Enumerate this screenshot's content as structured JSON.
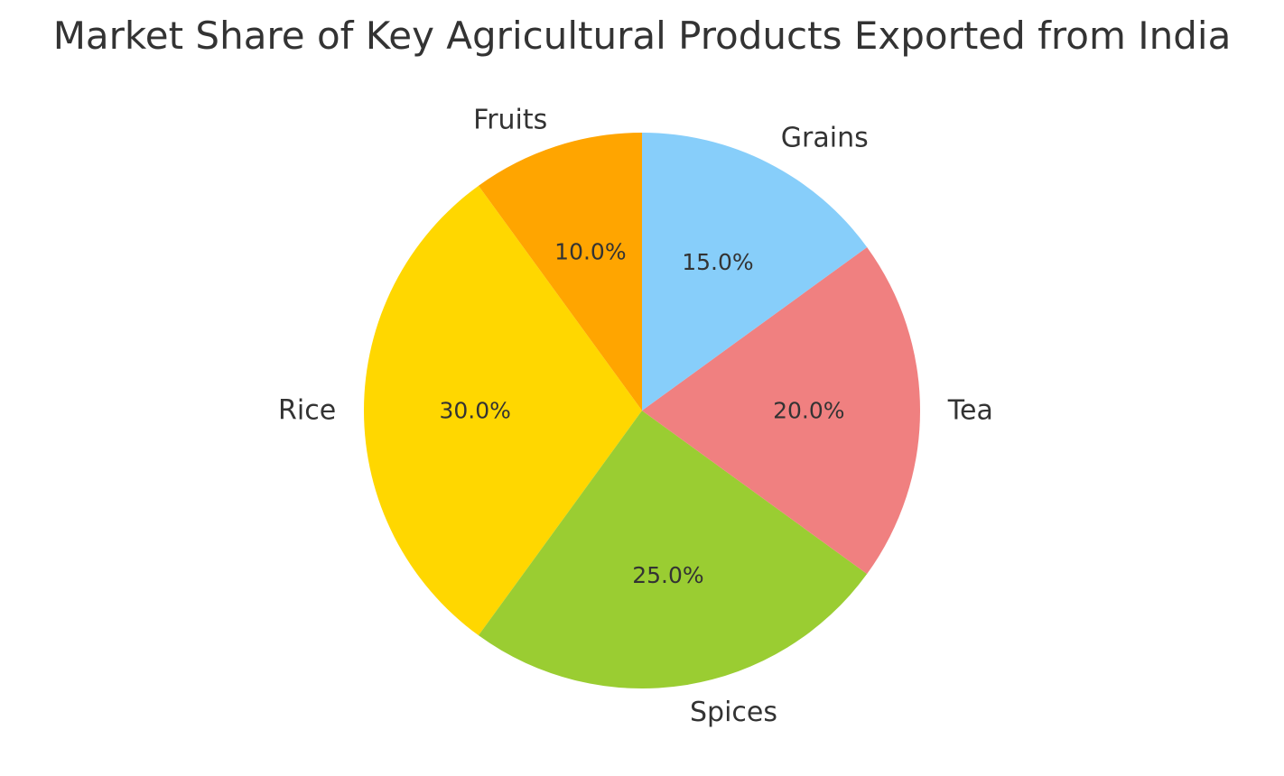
{
  "chart_data": {
    "type": "pie",
    "title": "Market Share of Key Agricultural Products Exported from India",
    "categories": [
      "Rice",
      "Spices",
      "Tea",
      "Grains",
      "Fruits"
    ],
    "values": [
      30.0,
      25.0,
      20.0,
      15.0,
      10.0
    ],
    "percent_labels": [
      "30.0%",
      "25.0%",
      "20.0%",
      "15.0%",
      "10.0%"
    ],
    "colors": [
      "#FFD700",
      "#9ACD32",
      "#F08080",
      "#87CEFA",
      "#FFA500"
    ],
    "start_angle_deg": 126,
    "direction": "counterclockwise",
    "legend": "none"
  }
}
